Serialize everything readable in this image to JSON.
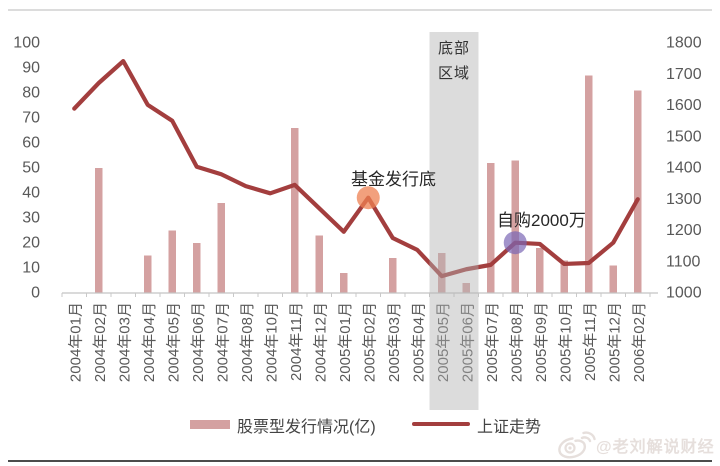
{
  "watermark": {
    "handle": "@老刘解说财经",
    "icon": "weibo-eye"
  },
  "chart_data": {
    "type": "combo_bar_line",
    "title": "",
    "xlabel": "",
    "ylabel_left": "股票型发行情况(亿)",
    "ylabel_right": "上证走势",
    "grid": false,
    "legend_position": "bottom",
    "categories": [
      "2004年01月",
      "2004年02月",
      "2004年03月",
      "2004年04月",
      "2004年05月",
      "2004年06月",
      "2004年07月",
      "2004年08月",
      "2004年10月",
      "2004年11月",
      "2004年12月",
      "2005年01月",
      "2005年02月",
      "2005年03月",
      "2005年04月",
      "2005年05月",
      "2005年06月",
      "2005年07月",
      "2005年08月",
      "2005年09月",
      "2005年10月",
      "2005年11月",
      "2005年12月",
      "2006年02月"
    ],
    "series": [
      {
        "name": "股票型发行情况(亿)",
        "type": "bar",
        "axis": "left",
        "color": "#d4a1a1",
        "values": [
          0,
          50,
          0,
          15,
          25,
          20,
          36,
          0,
          0,
          66,
          23,
          8,
          0,
          14,
          0,
          16,
          4,
          52,
          53,
          18,
          13,
          87,
          11,
          81
        ]
      },
      {
        "name": "上证走势",
        "type": "line",
        "axis": "right",
        "color": "#a33e3e",
        "values": [
          1590,
          1672,
          1742,
          1602,
          1551,
          1404,
          1380,
          1342,
          1319,
          1346,
          1271,
          1196,
          1305,
          1176,
          1138,
          1054,
          1076,
          1090,
          1161,
          1157,
          1093,
          1096,
          1161,
          1300
        ]
      }
    ],
    "left_axis": {
      "min": 0,
      "max": 100,
      "ticks": [
        "0",
        "10",
        "20",
        "30",
        "40",
        "50",
        "60",
        "70",
        "80",
        "90",
        "100"
      ]
    },
    "right_axis": {
      "min": 1000,
      "max": 1800,
      "ticks": [
        "1000",
        "1100",
        "1200",
        "1300",
        "1400",
        "1500",
        "1600",
        "1700",
        "1800"
      ]
    },
    "highlight_band": {
      "lines": [
        "底部",
        "区域"
      ],
      "from": "2005年05月",
      "to": "2005年06月",
      "color": "rgba(178,178,178,0.45)"
    },
    "annotations": [
      {
        "text": "基金发行底",
        "category": "2005年02月",
        "marker": "circle",
        "marker_color": "#ee8051",
        "marker_opacity": 0.75
      },
      {
        "text": "自购2000万",
        "category": "2005年08月",
        "marker": "circle",
        "marker_color": "#7a67b5",
        "marker_opacity": 0.7
      }
    ]
  }
}
